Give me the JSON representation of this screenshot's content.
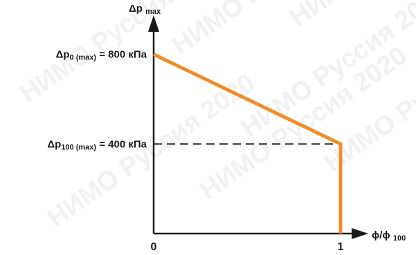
{
  "chart_data": {
    "type": "line",
    "ylabel": {
      "main": "Δp",
      "sub": "max"
    },
    "xlabel": {
      "main": "ϕ/ϕ",
      "sub": "100"
    },
    "xlim": [
      0,
      1
    ],
    "ylim": [
      0,
      950
    ],
    "x_ticks": [
      {
        "value": 0,
        "label": "0"
      },
      {
        "value": 1,
        "label": "1"
      }
    ],
    "y_annotations": [
      {
        "value": 800,
        "main": "Δp",
        "sub": "0 (max)",
        "text": " = 800 кПа"
      },
      {
        "value": 400,
        "main": "Δp",
        "sub": "100 (max)",
        "text": " = 400 кПа"
      }
    ],
    "series": [
      {
        "color": "#f28c28",
        "points": [
          {
            "x": 0,
            "y": 800
          },
          {
            "x": 1,
            "y": 400
          },
          {
            "x": 1,
            "y": 0
          }
        ]
      }
    ],
    "reference_lines": [
      {
        "type": "horizontal-dashed",
        "y": 400,
        "x_from": 0,
        "x_to": 1,
        "color": "#1a1a1a"
      }
    ],
    "watermark": "НИМО Руссия 2020",
    "colors": {
      "axis": "#1a1a1a",
      "series": "#f28c28",
      "watermark": "#c9c9c9"
    }
  }
}
